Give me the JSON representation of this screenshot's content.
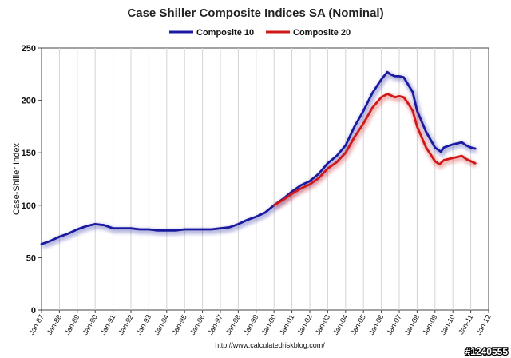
{
  "chart_data": {
    "type": "line",
    "title": "Case Shiller Composite Indices SA (Nominal)",
    "ylabel": "Case-Shiller Index",
    "xlabel": "",
    "ylim": [
      0,
      250
    ],
    "yticks": [
      "0",
      "50",
      "100",
      "150",
      "200",
      "250"
    ],
    "xlim": [
      1987,
      2012
    ],
    "xticks": [
      "Jan-87",
      "Jan-88",
      "Jan-89",
      "Jan-90",
      "Jan-91",
      "Jan-92",
      "Jan-93",
      "Jan-94",
      "Jan-95",
      "Jan-96",
      "Jan-97",
      "Jan-98",
      "Jan-99",
      "Jan-00",
      "Jan-01",
      "Jan-02",
      "Jan-03",
      "Jan-04",
      "Jan-05",
      "Jan-06",
      "Jan-07",
      "Jan-08",
      "Jan-09",
      "Jan-10",
      "Jan-11",
      "Jan-12"
    ],
    "grid": "vertical",
    "legend": "top-center",
    "series": [
      {
        "name": "Composite 10",
        "color": "#1a1aa0",
        "points": [
          [
            1987.0,
            63
          ],
          [
            1987.5,
            66
          ],
          [
            1988.0,
            70
          ],
          [
            1988.5,
            73
          ],
          [
            1989.0,
            77
          ],
          [
            1989.5,
            80
          ],
          [
            1990.0,
            82
          ],
          [
            1990.5,
            81
          ],
          [
            1991.0,
            78
          ],
          [
            1991.5,
            78
          ],
          [
            1992.0,
            78
          ],
          [
            1992.5,
            77
          ],
          [
            1993.0,
            77
          ],
          [
            1993.5,
            76
          ],
          [
            1994.0,
            76
          ],
          [
            1994.5,
            76
          ],
          [
            1995.0,
            77
          ],
          [
            1995.5,
            77
          ],
          [
            1996.0,
            77
          ],
          [
            1996.5,
            77
          ],
          [
            1997.0,
            78
          ],
          [
            1997.5,
            79
          ],
          [
            1998.0,
            82
          ],
          [
            1998.5,
            86
          ],
          [
            1999.0,
            89
          ],
          [
            1999.5,
            93
          ],
          [
            2000.0,
            100
          ],
          [
            2000.5,
            106
          ],
          [
            2001.0,
            113
          ],
          [
            2001.5,
            119
          ],
          [
            2002.0,
            123
          ],
          [
            2002.5,
            130
          ],
          [
            2003.0,
            140
          ],
          [
            2003.5,
            147
          ],
          [
            2004.0,
            157
          ],
          [
            2004.5,
            175
          ],
          [
            2005.0,
            190
          ],
          [
            2005.5,
            207
          ],
          [
            2006.0,
            220
          ],
          [
            2006.33,
            227
          ],
          [
            2006.5,
            225
          ],
          [
            2006.75,
            223
          ],
          [
            2007.0,
            223
          ],
          [
            2007.25,
            222
          ],
          [
            2007.5,
            215
          ],
          [
            2007.75,
            208
          ],
          [
            2008.0,
            190
          ],
          [
            2008.5,
            170
          ],
          [
            2009.0,
            155
          ],
          [
            2009.33,
            151
          ],
          [
            2009.5,
            155
          ],
          [
            2010.0,
            158
          ],
          [
            2010.5,
            160
          ],
          [
            2010.75,
            157
          ],
          [
            2011.0,
            155
          ],
          [
            2011.25,
            154
          ]
        ]
      },
      {
        "name": "Composite 20",
        "color": "#d01818",
        "points": [
          [
            2000.0,
            100
          ],
          [
            2000.5,
            105
          ],
          [
            2001.0,
            111
          ],
          [
            2001.5,
            116
          ],
          [
            2002.0,
            120
          ],
          [
            2002.5,
            126
          ],
          [
            2003.0,
            135
          ],
          [
            2003.5,
            141
          ],
          [
            2004.0,
            150
          ],
          [
            2004.5,
            165
          ],
          [
            2005.0,
            178
          ],
          [
            2005.5,
            193
          ],
          [
            2006.0,
            203
          ],
          [
            2006.33,
            206
          ],
          [
            2006.5,
            205
          ],
          [
            2006.75,
            203
          ],
          [
            2007.0,
            204
          ],
          [
            2007.25,
            203
          ],
          [
            2007.5,
            197
          ],
          [
            2007.75,
            190
          ],
          [
            2008.0,
            175
          ],
          [
            2008.5,
            155
          ],
          [
            2009.0,
            142
          ],
          [
            2009.25,
            139
          ],
          [
            2009.5,
            143
          ],
          [
            2010.0,
            145
          ],
          [
            2010.5,
            147
          ],
          [
            2010.75,
            144
          ],
          [
            2011.0,
            142
          ],
          [
            2011.25,
            140
          ]
        ]
      }
    ]
  },
  "source_text": "http://www.calculatedriskblog.com/",
  "stamp_text": "#1240555"
}
